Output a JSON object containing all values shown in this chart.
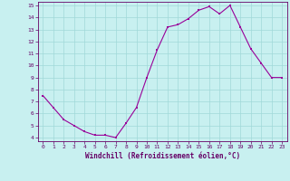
{
  "x": [
    0,
    1,
    2,
    3,
    4,
    5,
    6,
    7,
    8,
    9,
    10,
    11,
    12,
    13,
    14,
    15,
    16,
    17,
    18,
    19,
    20,
    21,
    22,
    23
  ],
  "y": [
    7.5,
    6.5,
    5.5,
    5.0,
    4.5,
    4.2,
    4.2,
    4.0,
    5.2,
    6.5,
    9.0,
    11.3,
    13.2,
    13.4,
    13.9,
    14.6,
    14.9,
    14.3,
    15.0,
    13.2,
    11.4,
    10.2,
    9.0,
    9.0
  ],
  "line_color": "#990099",
  "marker": "s",
  "marker_size": 2,
  "xlim": [
    -0.5,
    23.5
  ],
  "ylim": [
    3.7,
    15.3
  ],
  "yticks": [
    4,
    5,
    6,
    7,
    8,
    9,
    10,
    11,
    12,
    13,
    14,
    15
  ],
  "xticks": [
    0,
    1,
    2,
    3,
    4,
    5,
    6,
    7,
    8,
    9,
    10,
    11,
    12,
    13,
    14,
    15,
    16,
    17,
    18,
    19,
    20,
    21,
    22,
    23
  ],
  "xlabel": "Windchill (Refroidissement éolien,°C)",
  "background_color": "#c8f0f0",
  "grid_color": "#a0d8d8",
  "axis_color": "#660066",
  "label_color": "#660066",
  "tick_color": "#660066"
}
